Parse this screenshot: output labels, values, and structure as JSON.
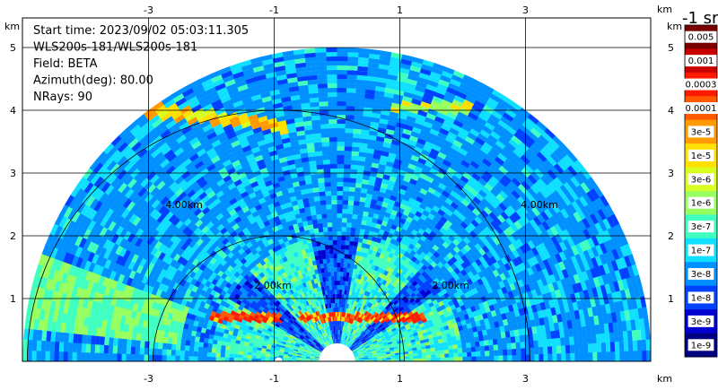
{
  "chart_data": {
    "type": "heatmap",
    "plot_kind": "PPI radar scan (polar sector)",
    "info": [
      "Start time: 2023/09/02 05:03:11.305",
      "WLS200s-181/WLS200s-181",
      "Field: BETA",
      "Azimuth(deg): 80.00",
      "NRays: 90"
    ],
    "x_ticks": [
      "-3",
      "-1",
      "1",
      "3"
    ],
    "x_tick_values": [
      -3,
      -1,
      1,
      3
    ],
    "y_ticks": [
      "1",
      "2",
      "3",
      "4",
      "5"
    ],
    "y_tick_values": [
      1,
      2,
      3,
      4,
      5
    ],
    "x_unit": "km",
    "y_unit": "km",
    "xlim": [
      -6,
      4.4
    ],
    "ylim": [
      0,
      6
    ],
    "range_rings_km": [
      2,
      4
    ],
    "range_ring_labels": [
      "2.00km",
      "2.00km",
      "4.00km",
      "4.00km"
    ],
    "max_range_km": 5.0,
    "grid": true,
    "colorbar": {
      "title": "-1 sr",
      "labels": [
        "0.005",
        "0.001",
        "0.0003",
        "0.0001",
        "3e-5",
        "1e-5",
        "3e-6",
        "1e-6",
        "3e-7",
        "1e-7",
        "3e-8",
        "1e-8",
        "3e-9",
        "1e-9"
      ],
      "colors": [
        "#7a0000",
        "#c80000",
        "#ff1a00",
        "#ff5a00",
        "#ff9a00",
        "#ffe000",
        "#d8ff20",
        "#98ff60",
        "#40ffc0",
        "#10e0ff",
        "#0090ff",
        "#0040ff",
        "#0000d0",
        "#000080"
      ]
    }
  }
}
